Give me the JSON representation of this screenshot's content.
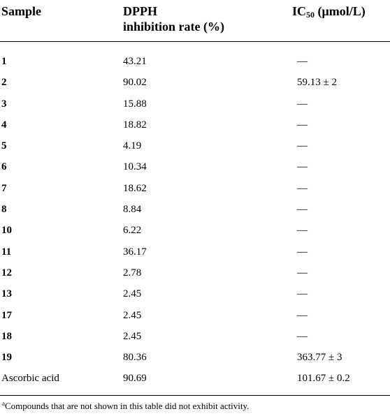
{
  "table": {
    "headers": {
      "sample": "Sample",
      "dpph_line1": "DPPH",
      "dpph_line2": "inhibition rate (%)",
      "ic50_prefix": "IC",
      "ic50_sub": "50",
      "ic50_suffix": " (μmol/L)"
    },
    "rows": [
      {
        "sample": "1",
        "bold": true,
        "dpph": "43.21",
        "ic50": "—"
      },
      {
        "sample": "2",
        "bold": true,
        "dpph": "90.02",
        "ic50": "59.13 ± 2"
      },
      {
        "sample": "3",
        "bold": true,
        "dpph": "15.88",
        "ic50": "—"
      },
      {
        "sample": "4",
        "bold": true,
        "dpph": "18.82",
        "ic50": "—"
      },
      {
        "sample": "5",
        "bold": true,
        "dpph": "4.19",
        "ic50": "—"
      },
      {
        "sample": "6",
        "bold": true,
        "dpph": "10.34",
        "ic50": "—"
      },
      {
        "sample": "7",
        "bold": true,
        "dpph": "18.62",
        "ic50": "—"
      },
      {
        "sample": "8",
        "bold": true,
        "dpph": "8.84",
        "ic50": "—"
      },
      {
        "sample": "10",
        "bold": true,
        "dpph": "6.22",
        "ic50": "—"
      },
      {
        "sample": "11",
        "bold": true,
        "dpph": "36.17",
        "ic50": "—"
      },
      {
        "sample": "12",
        "bold": true,
        "dpph": "2.78",
        "ic50": "—"
      },
      {
        "sample": "13",
        "bold": true,
        "dpph": "2.45",
        "ic50": "—"
      },
      {
        "sample": "17",
        "bold": true,
        "dpph": "2.45",
        "ic50": "—"
      },
      {
        "sample": "18",
        "bold": true,
        "dpph": "2.45",
        "ic50": "—"
      },
      {
        "sample": "19",
        "bold": true,
        "dpph": "80.36",
        "ic50": "363.77 ± 3"
      },
      {
        "sample": "Ascorbic acid",
        "bold": false,
        "dpph": "90.69",
        "ic50": "101.67 ± 0.2"
      }
    ]
  },
  "footnote": {
    "marker": "a",
    "text": "Compounds that are not shown in this table did not exhibit activity."
  }
}
